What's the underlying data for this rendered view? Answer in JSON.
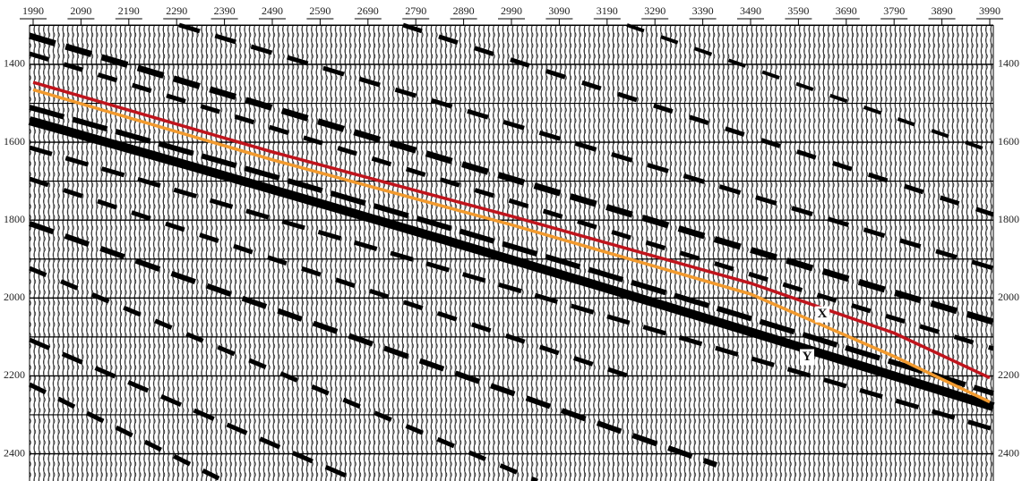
{
  "chart_data": {
    "type": "seismic",
    "xlim": [
      1982.5,
      3997.5
    ],
    "xticks": [
      1990,
      2090,
      2190,
      2290,
      2390,
      2490,
      2590,
      2690,
      2790,
      2890,
      2990,
      3090,
      3190,
      3290,
      3390,
      3490,
      3590,
      3690,
      3790,
      3890,
      3990
    ],
    "ylim": [
      1299,
      2470
    ],
    "yticks": [
      1400,
      1600,
      1800,
      2000,
      2200,
      2400
    ],
    "minor_yticks": [
      1300,
      1500,
      1700,
      1900,
      2100,
      2300
    ],
    "grid": true,
    "series": [
      {
        "name": "X",
        "color": "#c0141c",
        "x": [
          1990,
          2490,
          2990,
          3490,
          3790,
          3990
        ],
        "values": [
          1446,
          1625,
          1790,
          1962,
          2090,
          2205
        ]
      },
      {
        "name": "Y",
        "color": "#f29a2e",
        "x": [
          1990,
          2490,
          2990,
          3490,
          3790,
          3990
        ],
        "values": [
          1465,
          1645,
          1812,
          1990,
          2150,
          2267
        ]
      }
    ],
    "annotations": [
      {
        "text": "X",
        "x": 3640,
        "y": 2042
      },
      {
        "text": "Y",
        "x": 3608,
        "y": 2152
      }
    ]
  }
}
